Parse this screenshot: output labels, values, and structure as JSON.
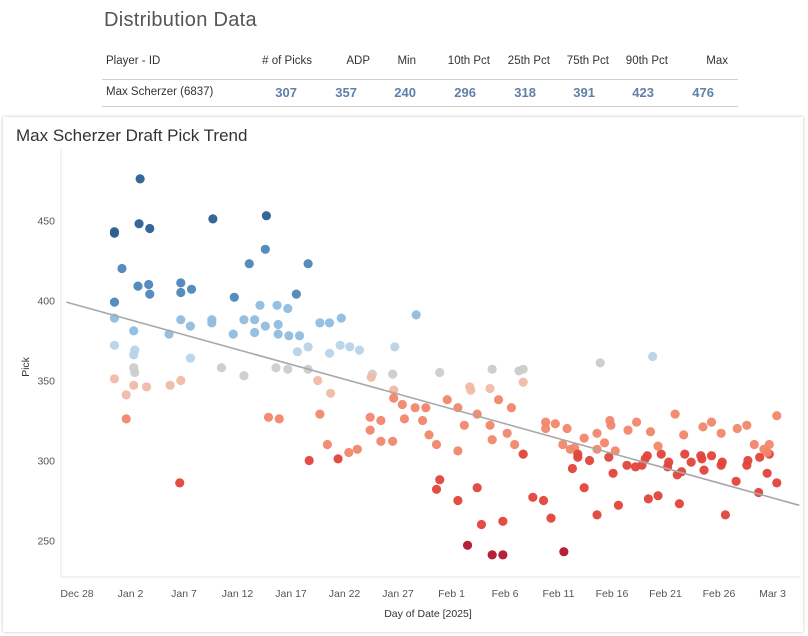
{
  "distribution": {
    "title": "Distribution Data",
    "headers": [
      "Player - ID",
      "# of Picks",
      "ADP",
      "Min",
      "10th Pct",
      "25th Pct",
      "75th Pct",
      "90th Pct",
      "Max"
    ],
    "row": {
      "player": "Max Scherzer (6837)",
      "values": [
        "307",
        "357",
        "240",
        "296",
        "318",
        "391",
        "423",
        "476"
      ]
    }
  },
  "chart_title": "Max Scherzer Draft Pick Trend",
  "colors": {
    "dark_blue": "#2c5f92",
    "mid_blue": "#4f86b9",
    "light_blue": "#8fbde0",
    "pale_blue": "#b8d3e8",
    "grey": "#cccccc",
    "pale_red": "#f2b9a6",
    "light_red": "#f1866a",
    "red": "#e0443b",
    "dark_red": "#b2142e",
    "trend": "#a8a8a8"
  },
  "chart_data": {
    "type": "scatter",
    "title": "Max Scherzer Draft Pick Trend",
    "xlabel": "Day of Date [2025]",
    "ylabel": "Pick",
    "x_unit": "days since Dec 28, 2024",
    "xlim": [
      -1,
      65
    ],
    "ylim": [
      225,
      482
    ],
    "grid": false,
    "y_ticks": [
      250,
      300,
      350,
      400,
      450
    ],
    "x_ticks": [
      {
        "day": 0,
        "label": "Dec 28"
      },
      {
        "day": 5,
        "label": "Jan 2"
      },
      {
        "day": 10,
        "label": "Jan 7"
      },
      {
        "day": 15,
        "label": "Jan 12"
      },
      {
        "day": 20,
        "label": "Jan 17"
      },
      {
        "day": 25,
        "label": "Jan 22"
      },
      {
        "day": 30,
        "label": "Jan 27"
      },
      {
        "day": 35,
        "label": "Feb 1"
      },
      {
        "day": 40,
        "label": "Feb 6"
      },
      {
        "day": 45,
        "label": "Feb 11"
      },
      {
        "day": 50,
        "label": "Feb 16"
      },
      {
        "day": 55,
        "label": "Feb 21"
      },
      {
        "day": 60,
        "label": "Feb 26"
      },
      {
        "day": 65,
        "label": "Mar 3"
      }
    ],
    "trend_line": {
      "x": [
        -1,
        67.5
      ],
      "y": [
        399,
        272
      ]
    },
    "points": [
      [
        3.5,
        443
      ],
      [
        3.5,
        442
      ],
      [
        4.2,
        420
      ],
      [
        5.9,
        476
      ],
      [
        5.8,
        448
      ],
      [
        6.8,
        445
      ],
      [
        5.7,
        409
      ],
      [
        6.7,
        410
      ],
      [
        6.8,
        404
      ],
      [
        9.7,
        411
      ],
      [
        9.7,
        405
      ],
      [
        10.7,
        407
      ],
      [
        12.7,
        451
      ],
      [
        17.7,
        453
      ],
      [
        17.6,
        432
      ],
      [
        16.1,
        423
      ],
      [
        21.6,
        423
      ],
      [
        18.7,
        397
      ],
      [
        14.7,
        402
      ],
      [
        17.1,
        397
      ],
      [
        20.5,
        404
      ],
      [
        19.7,
        395
      ],
      [
        3.5,
        399
      ],
      [
        3.5,
        389
      ],
      [
        5.3,
        381
      ],
      [
        9.7,
        388
      ],
      [
        12.6,
        386
      ],
      [
        15.6,
        388
      ],
      [
        16.6,
        388
      ],
      [
        17.6,
        384
      ],
      [
        18.8,
        385
      ],
      [
        16.6,
        380
      ],
      [
        18.8,
        379
      ],
      [
        14.6,
        379
      ],
      [
        8.6,
        379
      ],
      [
        12.6,
        388
      ],
      [
        20.8,
        378
      ],
      [
        19.8,
        378
      ],
      [
        22.7,
        386
      ],
      [
        23.6,
        386
      ],
      [
        24.7,
        389
      ],
      [
        29.7,
        371
      ],
      [
        31.7,
        391
      ],
      [
        10.6,
        384
      ],
      [
        3.5,
        372
      ],
      [
        5.4,
        369
      ],
      [
        21.6,
        371
      ],
      [
        20.6,
        368
      ],
      [
        23.6,
        367
      ],
      [
        24.6,
        372
      ],
      [
        25.5,
        371
      ],
      [
        26.4,
        369
      ],
      [
        5.3,
        366
      ],
      [
        10.6,
        364
      ],
      [
        5.3,
        358
      ],
      [
        13.5,
        358
      ],
      [
        18.6,
        358
      ],
      [
        19.7,
        357
      ],
      [
        21.6,
        357
      ],
      [
        27.6,
        354
      ],
      [
        29.5,
        354
      ],
      [
        33.9,
        355
      ],
      [
        38.8,
        357
      ],
      [
        41.7,
        357
      ],
      [
        48.9,
        361
      ],
      [
        53.8,
        365
      ],
      [
        3.5,
        351
      ],
      [
        5.4,
        355
      ],
      [
        5.3,
        347
      ],
      [
        6.5,
        346
      ],
      [
        8.7,
        347
      ],
      [
        9.7,
        350
      ],
      [
        15.6,
        353
      ],
      [
        22.5,
        350
      ],
      [
        27.5,
        352
      ],
      [
        36.7,
        346
      ],
      [
        36.8,
        344
      ],
      [
        38.6,
        345
      ],
      [
        4.6,
        341
      ],
      [
        4.6,
        326
      ],
      [
        17.9,
        327
      ],
      [
        18.9,
        326
      ],
      [
        22.7,
        329
      ],
      [
        23.7,
        342
      ],
      [
        28.4,
        325
      ],
      [
        29.6,
        344
      ],
      [
        29.6,
        339
      ],
      [
        30.4,
        335
      ],
      [
        31.6,
        333
      ],
      [
        32.6,
        333
      ],
      [
        32.3,
        325
      ],
      [
        34.6,
        338
      ],
      [
        35.6,
        333
      ],
      [
        37.4,
        329
      ],
      [
        36.2,
        322
      ],
      [
        39.4,
        338
      ],
      [
        40.6,
        333
      ],
      [
        41.3,
        356
      ],
      [
        41.7,
        349
      ],
      [
        43.8,
        320
      ],
      [
        43.8,
        324
      ],
      [
        44.7,
        323
      ],
      [
        45.8,
        320
      ],
      [
        46.5,
        308
      ],
      [
        46.8,
        302
      ],
      [
        47.4,
        314
      ],
      [
        48.6,
        317
      ],
      [
        49.8,
        325
      ],
      [
        49.9,
        322
      ],
      [
        50.3,
        306
      ],
      [
        51.5,
        319
      ],
      [
        52.3,
        324
      ],
      [
        53.6,
        318
      ],
      [
        54.6,
        304
      ],
      [
        55.9,
        329
      ],
      [
        56.7,
        316
      ],
      [
        56.8,
        304
      ],
      [
        58.5,
        321
      ],
      [
        59.3,
        324
      ],
      [
        60.2,
        317
      ],
      [
        61.7,
        320
      ],
      [
        62.6,
        322
      ],
      [
        63.3,
        310
      ],
      [
        64.2,
        307
      ],
      [
        65.4,
        328
      ],
      [
        21.7,
        300
      ],
      [
        23.4,
        310
      ],
      [
        24.4,
        301
      ],
      [
        25.4,
        305
      ],
      [
        26.2,
        307
      ],
      [
        27.4,
        319
      ],
      [
        27.4,
        327
      ],
      [
        28.4,
        312
      ],
      [
        29.5,
        312
      ],
      [
        30.6,
        326
      ],
      [
        32.9,
        316
      ],
      [
        33.6,
        310
      ],
      [
        35.6,
        306
      ],
      [
        38.6,
        322
      ],
      [
        38.8,
        313
      ],
      [
        40.2,
        317
      ],
      [
        40.9,
        310
      ],
      [
        41.7,
        304
      ],
      [
        45.4,
        310
      ],
      [
        46.1,
        307
      ],
      [
        48.6,
        307
      ],
      [
        49.3,
        311
      ],
      [
        49.7,
        302
      ],
      [
        51.4,
        297
      ],
      [
        52.8,
        297
      ],
      [
        53.3,
        303
      ],
      [
        54.3,
        309
      ],
      [
        55.2,
        296
      ],
      [
        56.5,
        293
      ],
      [
        57.4,
        299
      ],
      [
        58.6,
        294
      ],
      [
        58.3,
        303
      ],
      [
        59.3,
        303
      ],
      [
        60.2,
        297
      ],
      [
        62.6,
        297
      ],
      [
        63.8,
        302
      ],
      [
        64.7,
        304
      ],
      [
        46.3,
        295
      ],
      [
        46.8,
        304
      ],
      [
        47.9,
        300
      ],
      [
        50.1,
        292
      ],
      [
        52.2,
        296
      ],
      [
        53.1,
        301
      ],
      [
        55.3,
        299
      ],
      [
        56.1,
        291
      ],
      [
        58.4,
        301
      ],
      [
        60.3,
        299
      ],
      [
        62.7,
        300
      ],
      [
        64.5,
        305
      ],
      [
        64.7,
        310
      ],
      [
        33.6,
        282
      ],
      [
        35.6,
        275
      ],
      [
        37.4,
        283
      ],
      [
        42.6,
        277
      ],
      [
        43.6,
        275
      ],
      [
        47.4,
        283
      ],
      [
        48.6,
        266
      ],
      [
        50.6,
        272
      ],
      [
        53.4,
        276
      ],
      [
        54.3,
        278
      ],
      [
        56.3,
        273
      ],
      [
        60.6,
        266
      ],
      [
        61.6,
        287
      ],
      [
        63.7,
        280
      ],
      [
        64.5,
        292
      ],
      [
        65.4,
        286
      ],
      [
        9.6,
        286
      ],
      [
        33.9,
        288
      ],
      [
        36.5,
        247
      ],
      [
        37.8,
        260
      ],
      [
        38.8,
        241
      ],
      [
        39.8,
        262
      ],
      [
        39.8,
        241
      ],
      [
        44.3,
        264
      ],
      [
        45.5,
        243
      ]
    ],
    "point_color_rule": "colour reflects pick relative to ADP 357 (blue = later, red = earlier)"
  },
  "icons": {}
}
